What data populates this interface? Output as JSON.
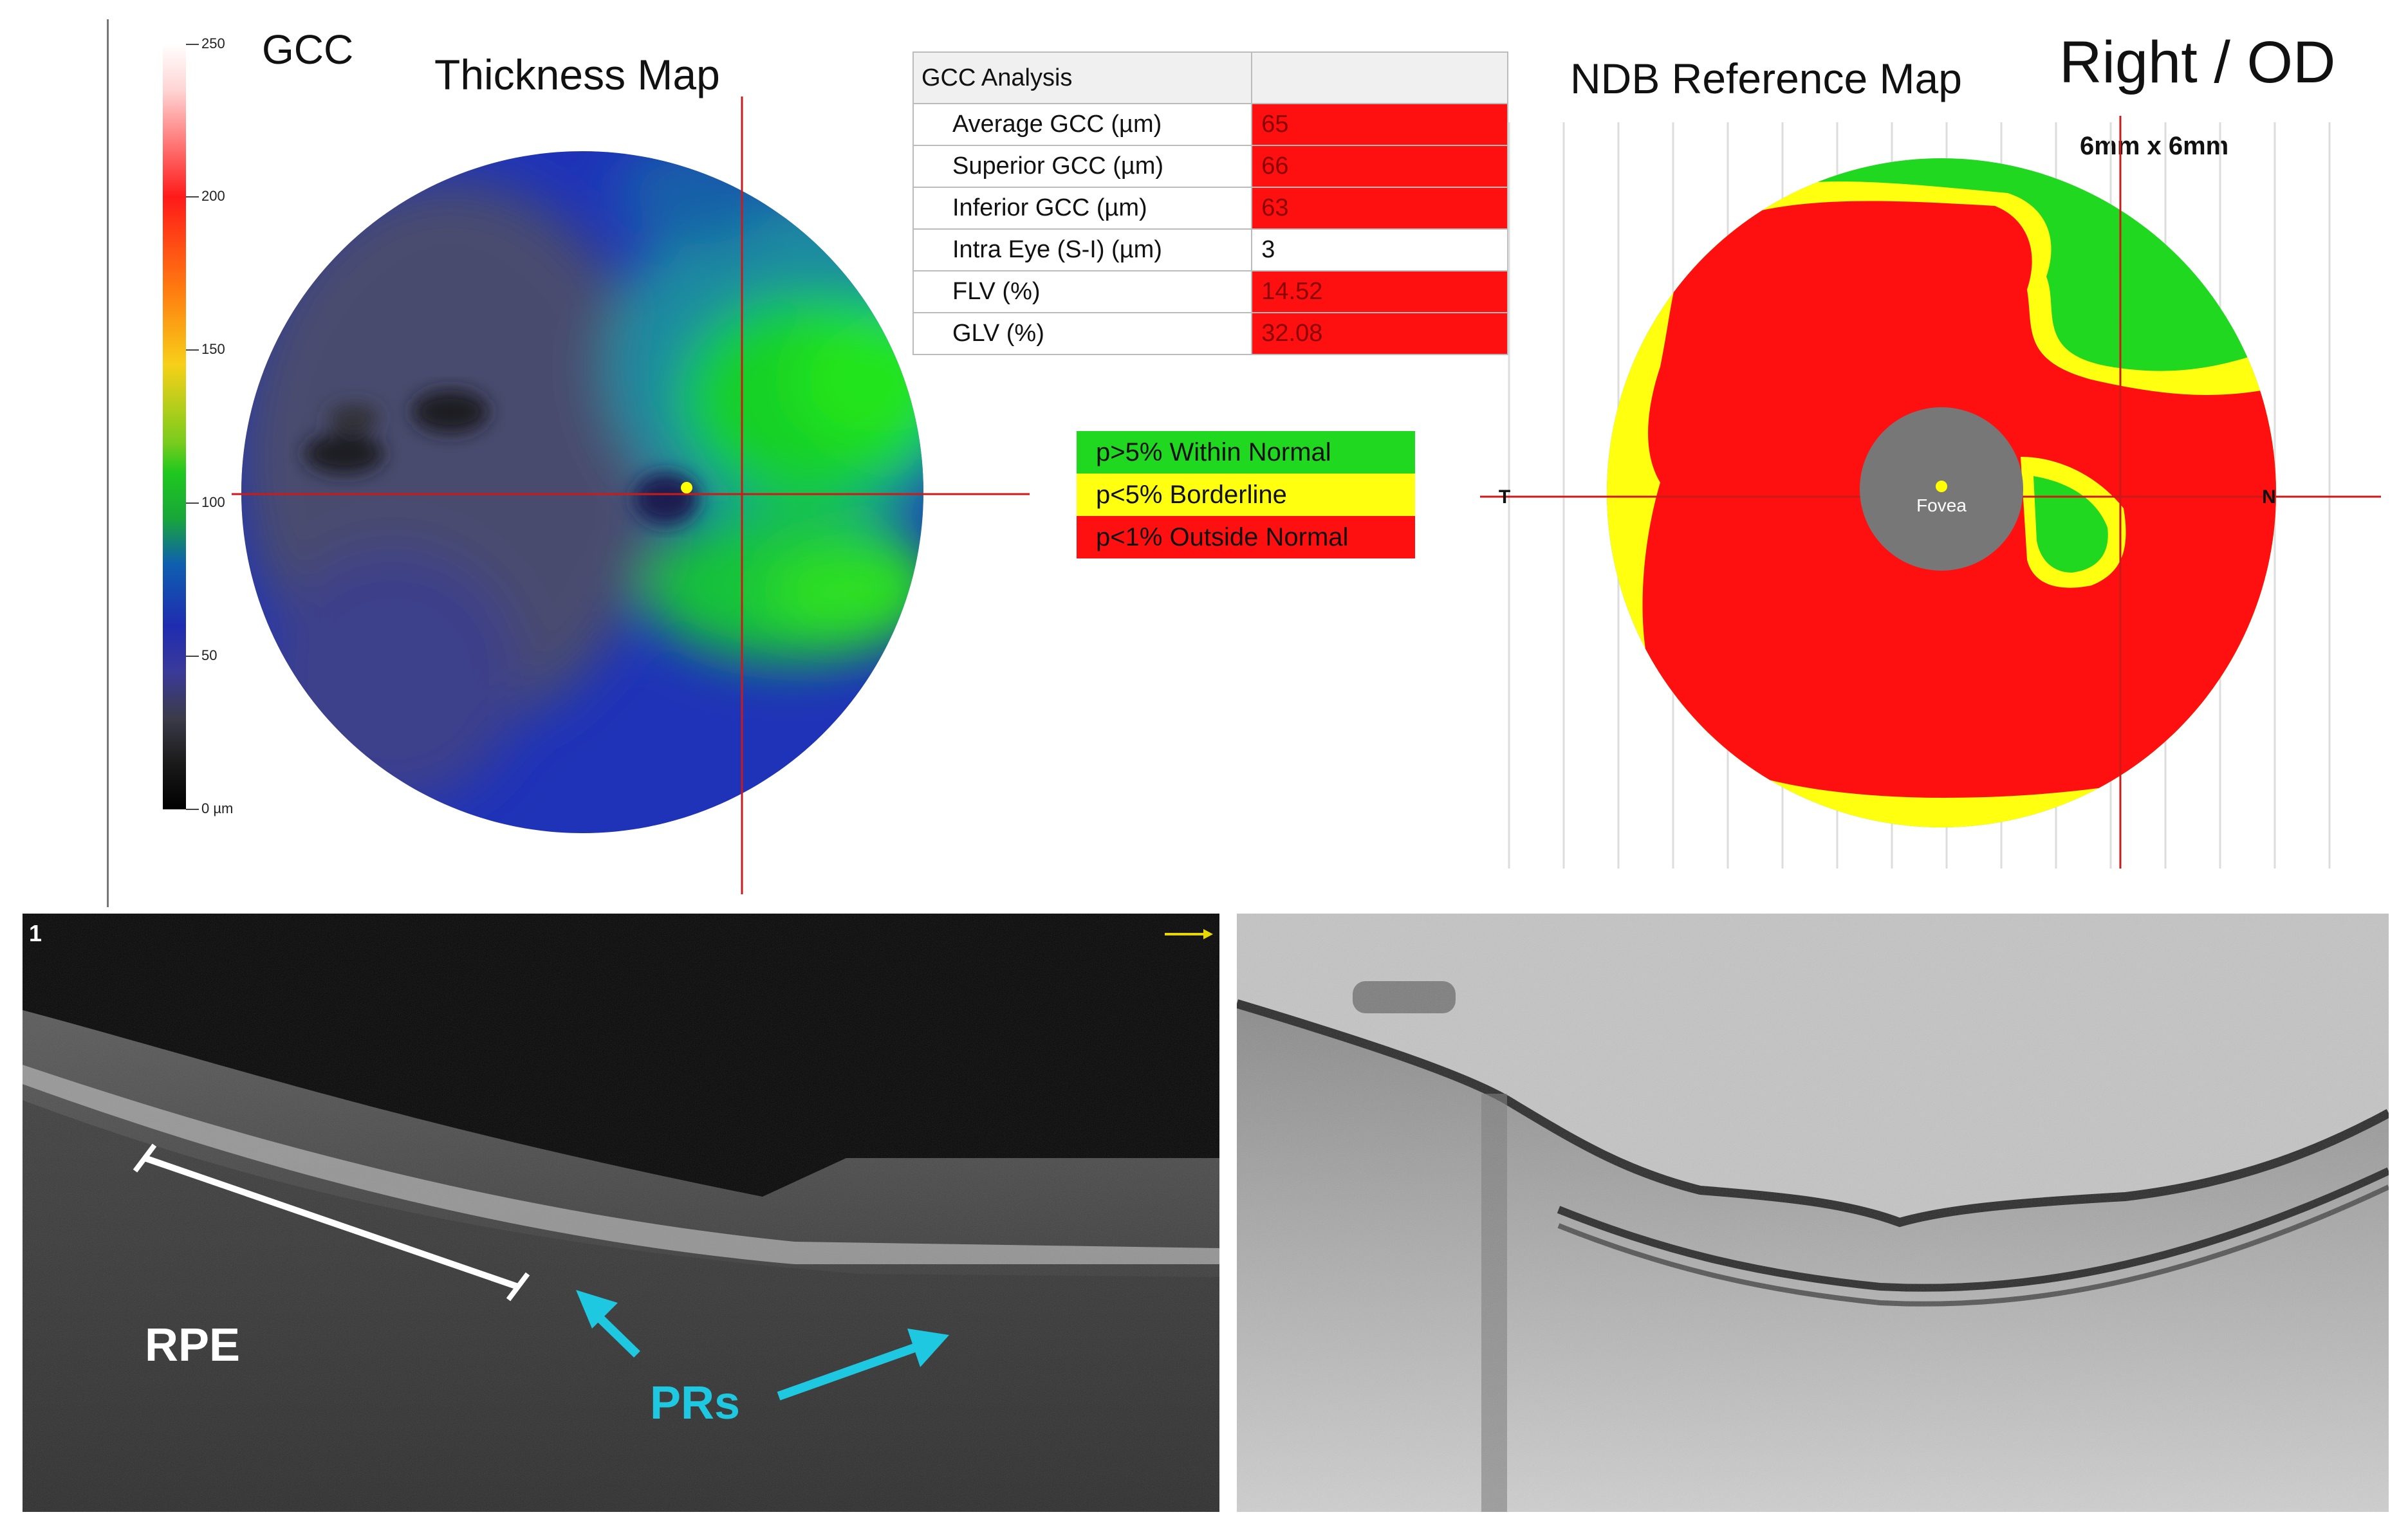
{
  "maps": {
    "gcc_label": "GCC",
    "thickness_title": "Thickness Map",
    "ndb_title": "NDB Reference Map",
    "eye": "Right / OD",
    "scan_size": "6mm x 6mm",
    "fovea_label": "Fovea",
    "temporal_label": "T",
    "nasal_label": "N"
  },
  "color_scale": {
    "ticks": [
      "250",
      "200",
      "150",
      "100",
      "50",
      "0 µm"
    ]
  },
  "gcc_table": {
    "header": "GCC Analysis",
    "rows": [
      {
        "label": "Average GCC (µm)",
        "value": "65",
        "flag": "red"
      },
      {
        "label": "Superior GCC (µm)",
        "value": "66",
        "flag": "red"
      },
      {
        "label": "Inferior GCC (µm)",
        "value": "63",
        "flag": "red"
      },
      {
        "label": "Intra Eye (S-I) (µm)",
        "value": "3",
        "flag": "none"
      },
      {
        "label": "FLV (%)",
        "value": "14.52",
        "flag": "red"
      },
      {
        "label": "GLV (%)",
        "value": "32.08",
        "flag": "red"
      }
    ]
  },
  "legend": {
    "items": [
      {
        "label": "p>5% Within Normal",
        "color": "#1fd81f"
      },
      {
        "label": "p<5% Borderline",
        "color": "#ffff10"
      },
      {
        "label": "p<1% Outside Normal",
        "color": "#ff1010"
      }
    ]
  },
  "oct_left": {
    "frame_number": "1",
    "rpe_label": "RPE",
    "prs_label": "PRs"
  },
  "colors": {
    "annotation_cyan": "#1ec8e0",
    "crosshair_red": "#cc1a1a",
    "fovea_gray": "#777777"
  }
}
